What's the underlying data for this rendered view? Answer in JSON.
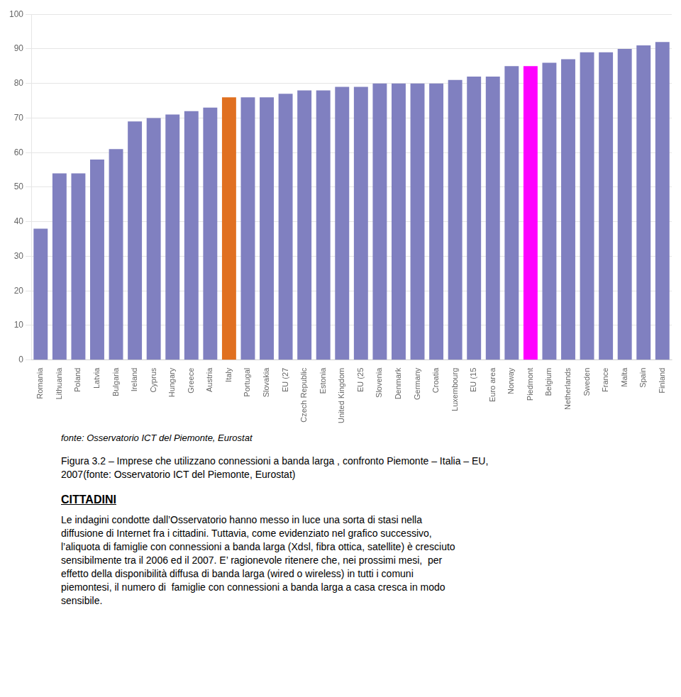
{
  "chart_data": {
    "type": "bar",
    "categories": [
      "Romania",
      "Lithuania",
      "Poland",
      "Latvia",
      "Bulgaria",
      "Ireland",
      "Cyprus",
      "Hungary",
      "Greece",
      "Austria",
      "Italy",
      "Portugal",
      "Slovakia",
      "EU (27",
      "Czech Republic",
      "Estonia",
      "United Kingdom",
      "EU (25",
      "Slovenia",
      "Denmark",
      "Germany",
      "Croatia",
      "Luxembourg",
      "EU (15",
      "Euro area",
      "Norway",
      "Piedmont",
      "Belgium",
      "Netherlands",
      "Sweden",
      "France",
      "Malta",
      "Spain",
      "Finland"
    ],
    "values": [
      38,
      54,
      54,
      58,
      61,
      69,
      70,
      71,
      72,
      73,
      76,
      76,
      76,
      77,
      78,
      78,
      79,
      79,
      80,
      80,
      80,
      80,
      81,
      82,
      82,
      85,
      85,
      86,
      87,
      89,
      89,
      90,
      91,
      92
    ],
    "colors": [
      "#8080C0",
      "#8080C0",
      "#8080C0",
      "#8080C0",
      "#8080C0",
      "#8080C0",
      "#8080C0",
      "#8080C0",
      "#8080C0",
      "#8080C0",
      "#E07020",
      "#8080C0",
      "#8080C0",
      "#8080C0",
      "#8080C0",
      "#8080C0",
      "#8080C0",
      "#8080C0",
      "#8080C0",
      "#8080C0",
      "#8080C0",
      "#8080C0",
      "#8080C0",
      "#8080C0",
      "#8080C0",
      "#8080C0",
      "#FF00FF",
      "#8080C0",
      "#8080C0",
      "#8080C0",
      "#8080C0",
      "#8080C0",
      "#8080C0",
      "#8080C0"
    ],
    "ylim": [
      0,
      100
    ],
    "yticks": [
      0,
      10,
      20,
      30,
      40,
      50,
      60,
      70,
      80,
      90,
      100
    ],
    "grid": true,
    "annotations": [
      "fonte: Osservatorio ICT del Piemonte, Eurostat",
      "Figura 3.2 – Imprese che utilizzano connessioni a banda larga , confronto Piemonte – Italia – EU,",
      "2007(fonte: Osservatorio ICT del Piemonte, Eurostat)",
      "CITTADINI",
      "Le indagini condotte dall’Osservatorio hanno messo in luce una sorta di stasi nella",
      "diffusione di Internet fra i cittadini. Tuttavia, come evidenziato nel grafico successivo,",
      "l’aliquota di famiglie con connessioni a banda larga (Xdsl, fibra ottica, satellite) è cresciuto",
      "sensibilmente tra il 2006 ed il 2007. E’ ragionevole ritenere che, nei prossimi mesi,  per",
      "effetto della disponibilità diffusa di banda larga (wired o wireless) in tutti i comuni",
      "piemontesi, il numero di  famiglie con connessioni a banda larga a casa cresca in modo",
      "sensibile."
    ]
  }
}
